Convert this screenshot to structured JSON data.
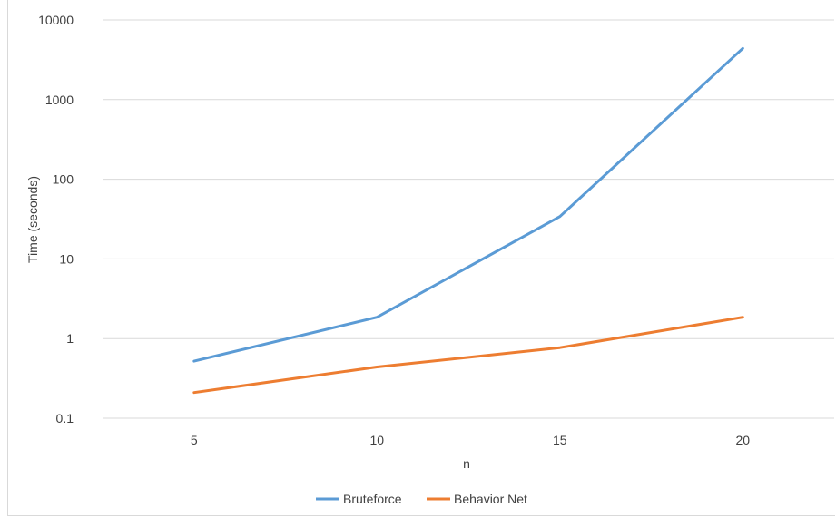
{
  "chart_data": {
    "type": "line",
    "title": "",
    "xlabel": "n",
    "ylabel": "Time (seconds)",
    "y_scale": "log",
    "ylim": [
      0.1,
      10000
    ],
    "y_ticks": [
      0.1,
      1,
      10,
      100,
      1000,
      10000
    ],
    "y_tick_labels": [
      "0.1",
      "1",
      "10",
      "100",
      "1000",
      "10000"
    ],
    "categories": [
      "5",
      "10",
      "15",
      "20"
    ],
    "grid": true,
    "legend_position": "bottom",
    "series": [
      {
        "name": "Bruteforce",
        "color": "#5b9bd5",
        "values": [
          0.52,
          1.85,
          34,
          4400
        ]
      },
      {
        "name": "Behavior Net",
        "color": "#ed7d31",
        "values": [
          0.21,
          0.44,
          0.77,
          1.85
        ]
      }
    ]
  }
}
